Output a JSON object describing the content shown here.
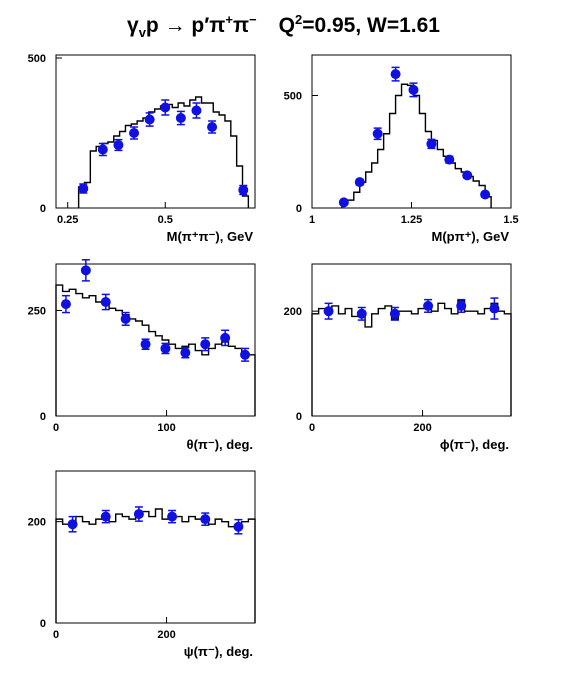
{
  "title": {
    "gamma": "γ",
    "gamma_sub": "v",
    "reaction_rest": "p → p",
    "prime": "′",
    "pi": "π",
    "plus": "+",
    "pi2": "π",
    "minus": "−",
    "q": "Q",
    "q_sup": "2",
    "q_value": "=0.95, W=1.61"
  },
  "chart_data": [
    {
      "type": "line",
      "xlabel": "M(π⁺π⁻), GeV",
      "ylabel": "",
      "xlim": [
        0.22,
        0.73
      ],
      "ylim": [
        0,
        510
      ],
      "x_ticks": [
        0.25,
        0.5
      ],
      "x_tick_labels": [
        "0.25",
        "0.5"
      ],
      "y_ticks": [
        0,
        500
      ],
      "y_tick_labels": [
        "0",
        "500"
      ],
      "series": [
        {
          "style": "histogram",
          "edges": [
            0.278,
            0.293,
            0.308,
            0.323,
            0.338,
            0.353,
            0.368,
            0.383,
            0.398,
            0.413,
            0.428,
            0.443,
            0.458,
            0.473,
            0.488,
            0.503,
            0.518,
            0.533,
            0.548,
            0.563,
            0.578,
            0.593,
            0.608,
            0.623,
            0.638,
            0.653,
            0.668,
            0.683,
            0.698,
            0.713
          ],
          "values": [
            70,
            85,
            190,
            205,
            215,
            220,
            240,
            255,
            275,
            280,
            290,
            300,
            320,
            330,
            340,
            345,
            335,
            350,
            340,
            360,
            370,
            350,
            350,
            320,
            310,
            290,
            240,
            140,
            40
          ]
        },
        {
          "style": "points",
          "x": [
            0.29,
            0.34,
            0.38,
            0.42,
            0.46,
            0.5,
            0.54,
            0.58,
            0.62,
            0.7
          ],
          "y": [
            65,
            195,
            210,
            250,
            295,
            335,
            300,
            325,
            270,
            60
          ],
          "yerr": [
            15,
            20,
            18,
            20,
            22,
            25,
            22,
            25,
            20,
            15
          ]
        }
      ]
    },
    {
      "type": "line",
      "xlabel": "M(pπ⁺), GeV",
      "ylabel": "",
      "xlim": [
        1.0,
        1.5
      ],
      "ylim": [
        0,
        680
      ],
      "x_ticks": [
        1,
        1.25,
        1.5
      ],
      "x_tick_labels": [
        "1",
        "1.25",
        "1.5"
      ],
      "y_ticks": [
        0,
        500
      ],
      "y_tick_labels": [
        "0",
        "500"
      ],
      "series": [
        {
          "style": "histogram",
          "edges": [
            1.075,
            1.09,
            1.105,
            1.12,
            1.135,
            1.15,
            1.165,
            1.18,
            1.195,
            1.21,
            1.225,
            1.24,
            1.255,
            1.27,
            1.285,
            1.3,
            1.315,
            1.33,
            1.345,
            1.36,
            1.375,
            1.39,
            1.405,
            1.42,
            1.435,
            1.45
          ],
          "values": [
            20,
            35,
            70,
            115,
            160,
            200,
            260,
            330,
            420,
            500,
            550,
            545,
            500,
            420,
            340,
            300,
            260,
            230,
            200,
            175,
            160,
            140,
            120,
            100,
            50
          ]
        },
        {
          "style": "points",
          "x": [
            1.08,
            1.12,
            1.165,
            1.21,
            1.255,
            1.3,
            1.345,
            1.39,
            1.435
          ],
          "y": [
            25,
            115,
            330,
            595,
            525,
            285,
            215,
            145,
            60
          ],
          "yerr": [
            8,
            12,
            25,
            30,
            30,
            20,
            15,
            12,
            10
          ]
        }
      ]
    },
    {
      "type": "line",
      "xlabel": "θ(π⁻), deg.",
      "ylabel": "",
      "xlim": [
        0,
        180
      ],
      "ylim": [
        0,
        360
      ],
      "x_ticks": [
        0,
        100
      ],
      "x_tick_labels": [
        "0",
        "100"
      ],
      "y_ticks": [
        0,
        250
      ],
      "y_tick_labels": [
        "0",
        "250"
      ],
      "series": [
        {
          "style": "histogram",
          "edges": [
            0,
            6,
            12,
            18,
            24,
            30,
            36,
            42,
            48,
            54,
            60,
            66,
            72,
            78,
            84,
            90,
            96,
            102,
            108,
            114,
            120,
            126,
            132,
            138,
            144,
            150,
            156,
            162,
            168,
            174,
            180
          ],
          "values": [
            310,
            295,
            300,
            290,
            280,
            285,
            270,
            265,
            255,
            250,
            240,
            230,
            225,
            215,
            200,
            190,
            180,
            170,
            160,
            165,
            170,
            155,
            145,
            160,
            170,
            175,
            165,
            160,
            140,
            145
          ]
        },
        {
          "style": "points",
          "x": [
            9,
            27,
            45,
            63,
            81,
            99,
            117,
            135,
            153,
            171
          ],
          "y": [
            265,
            345,
            270,
            230,
            170,
            160,
            150,
            170,
            185,
            145
          ],
          "yerr": [
            20,
            25,
            18,
            15,
            12,
            12,
            12,
            15,
            18,
            15
          ]
        }
      ]
    },
    {
      "type": "line",
      "xlabel": "ϕ(π⁻), deg.",
      "ylabel": "",
      "xlim": [
        0,
        360
      ],
      "ylim": [
        0,
        290
      ],
      "x_ticks": [
        0,
        200
      ],
      "x_tick_labels": [
        "0",
        "200"
      ],
      "y_ticks": [
        0,
        200
      ],
      "y_tick_labels": [
        "0",
        "200"
      ],
      "series": [
        {
          "style": "histogram",
          "edges": [
            0,
            12,
            24,
            36,
            48,
            60,
            72,
            84,
            96,
            108,
            120,
            132,
            144,
            156,
            168,
            180,
            192,
            204,
            216,
            228,
            240,
            252,
            264,
            276,
            288,
            300,
            312,
            324,
            336,
            348,
            360
          ],
          "values": [
            195,
            205,
            200,
            210,
            195,
            205,
            190,
            200,
            170,
            195,
            205,
            210,
            185,
            200,
            200,
            195,
            205,
            210,
            200,
            215,
            205,
            195,
            220,
            200,
            200,
            195,
            205,
            215,
            200,
            195
          ]
        },
        {
          "style": "points",
          "x": [
            30,
            90,
            150,
            210,
            270,
            330
          ],
          "y": [
            200,
            195,
            195,
            210,
            210,
            205
          ],
          "yerr": [
            15,
            12,
            12,
            12,
            12,
            20
          ]
        }
      ]
    },
    {
      "type": "line",
      "xlabel": "ψ(π⁻), deg.",
      "ylabel": "",
      "xlim": [
        0,
        360
      ],
      "ylim": [
        0,
        300
      ],
      "x_ticks": [
        0,
        200
      ],
      "x_tick_labels": [
        "0",
        "200"
      ],
      "y_ticks": [
        0,
        200
      ],
      "y_tick_labels": [
        "0",
        "200"
      ],
      "series": [
        {
          "style": "histogram",
          "edges": [
            0,
            12,
            24,
            36,
            48,
            60,
            72,
            84,
            96,
            108,
            120,
            132,
            144,
            156,
            168,
            180,
            192,
            204,
            216,
            228,
            240,
            252,
            264,
            276,
            288,
            300,
            312,
            324,
            336,
            348,
            360
          ],
          "values": [
            205,
            195,
            200,
            210,
            200,
            195,
            205,
            210,
            200,
            215,
            210,
            205,
            215,
            220,
            210,
            225,
            205,
            215,
            210,
            200,
            210,
            205,
            200,
            195,
            205,
            200,
            190,
            195,
            200,
            205
          ]
        },
        {
          "style": "points",
          "x": [
            30,
            90,
            150,
            210,
            270,
            330
          ],
          "y": [
            195,
            210,
            215,
            210,
            205,
            190
          ],
          "yerr": [
            15,
            12,
            14,
            12,
            12,
            14
          ]
        }
      ]
    }
  ]
}
